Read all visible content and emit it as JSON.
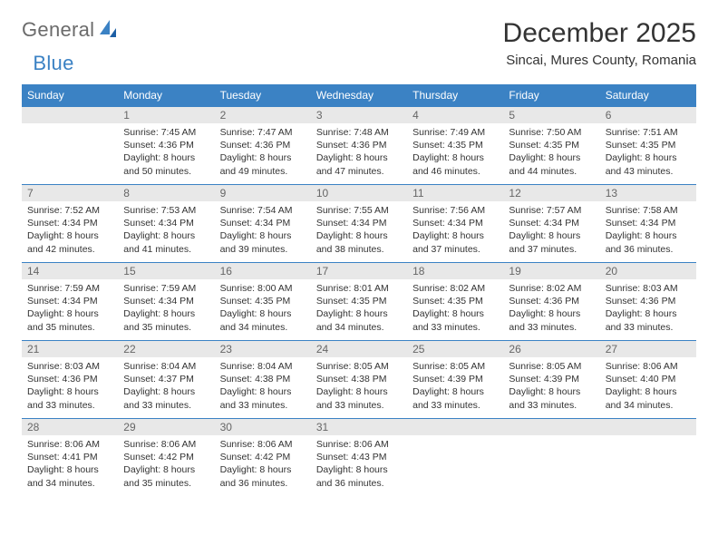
{
  "logo": {
    "word1": "General",
    "word2": "Blue"
  },
  "title": "December 2025",
  "location": "Sincai, Mures County, Romania",
  "colors": {
    "header_bg": "#3b82c4",
    "header_text": "#ffffff",
    "day_num_bg": "#e8e8e8",
    "day_num_text": "#666666",
    "body_text": "#333333",
    "rule": "#3b82c4",
    "page_bg": "#ffffff"
  },
  "weekdays": [
    "Sunday",
    "Monday",
    "Tuesday",
    "Wednesday",
    "Thursday",
    "Friday",
    "Saturday"
  ],
  "weeks": [
    [
      {
        "n": "",
        "sr": "",
        "ss": "",
        "dl": ""
      },
      {
        "n": "1",
        "sr": "Sunrise: 7:45 AM",
        "ss": "Sunset: 4:36 PM",
        "dl": "Daylight: 8 hours and 50 minutes."
      },
      {
        "n": "2",
        "sr": "Sunrise: 7:47 AM",
        "ss": "Sunset: 4:36 PM",
        "dl": "Daylight: 8 hours and 49 minutes."
      },
      {
        "n": "3",
        "sr": "Sunrise: 7:48 AM",
        "ss": "Sunset: 4:36 PM",
        "dl": "Daylight: 8 hours and 47 minutes."
      },
      {
        "n": "4",
        "sr": "Sunrise: 7:49 AM",
        "ss": "Sunset: 4:35 PM",
        "dl": "Daylight: 8 hours and 46 minutes."
      },
      {
        "n": "5",
        "sr": "Sunrise: 7:50 AM",
        "ss": "Sunset: 4:35 PM",
        "dl": "Daylight: 8 hours and 44 minutes."
      },
      {
        "n": "6",
        "sr": "Sunrise: 7:51 AM",
        "ss": "Sunset: 4:35 PM",
        "dl": "Daylight: 8 hours and 43 minutes."
      }
    ],
    [
      {
        "n": "7",
        "sr": "Sunrise: 7:52 AM",
        "ss": "Sunset: 4:34 PM",
        "dl": "Daylight: 8 hours and 42 minutes."
      },
      {
        "n": "8",
        "sr": "Sunrise: 7:53 AM",
        "ss": "Sunset: 4:34 PM",
        "dl": "Daylight: 8 hours and 41 minutes."
      },
      {
        "n": "9",
        "sr": "Sunrise: 7:54 AM",
        "ss": "Sunset: 4:34 PM",
        "dl": "Daylight: 8 hours and 39 minutes."
      },
      {
        "n": "10",
        "sr": "Sunrise: 7:55 AM",
        "ss": "Sunset: 4:34 PM",
        "dl": "Daylight: 8 hours and 38 minutes."
      },
      {
        "n": "11",
        "sr": "Sunrise: 7:56 AM",
        "ss": "Sunset: 4:34 PM",
        "dl": "Daylight: 8 hours and 37 minutes."
      },
      {
        "n": "12",
        "sr": "Sunrise: 7:57 AM",
        "ss": "Sunset: 4:34 PM",
        "dl": "Daylight: 8 hours and 37 minutes."
      },
      {
        "n": "13",
        "sr": "Sunrise: 7:58 AM",
        "ss": "Sunset: 4:34 PM",
        "dl": "Daylight: 8 hours and 36 minutes."
      }
    ],
    [
      {
        "n": "14",
        "sr": "Sunrise: 7:59 AM",
        "ss": "Sunset: 4:34 PM",
        "dl": "Daylight: 8 hours and 35 minutes."
      },
      {
        "n": "15",
        "sr": "Sunrise: 7:59 AM",
        "ss": "Sunset: 4:34 PM",
        "dl": "Daylight: 8 hours and 35 minutes."
      },
      {
        "n": "16",
        "sr": "Sunrise: 8:00 AM",
        "ss": "Sunset: 4:35 PM",
        "dl": "Daylight: 8 hours and 34 minutes."
      },
      {
        "n": "17",
        "sr": "Sunrise: 8:01 AM",
        "ss": "Sunset: 4:35 PM",
        "dl": "Daylight: 8 hours and 34 minutes."
      },
      {
        "n": "18",
        "sr": "Sunrise: 8:02 AM",
        "ss": "Sunset: 4:35 PM",
        "dl": "Daylight: 8 hours and 33 minutes."
      },
      {
        "n": "19",
        "sr": "Sunrise: 8:02 AM",
        "ss": "Sunset: 4:36 PM",
        "dl": "Daylight: 8 hours and 33 minutes."
      },
      {
        "n": "20",
        "sr": "Sunrise: 8:03 AM",
        "ss": "Sunset: 4:36 PM",
        "dl": "Daylight: 8 hours and 33 minutes."
      }
    ],
    [
      {
        "n": "21",
        "sr": "Sunrise: 8:03 AM",
        "ss": "Sunset: 4:36 PM",
        "dl": "Daylight: 8 hours and 33 minutes."
      },
      {
        "n": "22",
        "sr": "Sunrise: 8:04 AM",
        "ss": "Sunset: 4:37 PM",
        "dl": "Daylight: 8 hours and 33 minutes."
      },
      {
        "n": "23",
        "sr": "Sunrise: 8:04 AM",
        "ss": "Sunset: 4:38 PM",
        "dl": "Daylight: 8 hours and 33 minutes."
      },
      {
        "n": "24",
        "sr": "Sunrise: 8:05 AM",
        "ss": "Sunset: 4:38 PM",
        "dl": "Daylight: 8 hours and 33 minutes."
      },
      {
        "n": "25",
        "sr": "Sunrise: 8:05 AM",
        "ss": "Sunset: 4:39 PM",
        "dl": "Daylight: 8 hours and 33 minutes."
      },
      {
        "n": "26",
        "sr": "Sunrise: 8:05 AM",
        "ss": "Sunset: 4:39 PM",
        "dl": "Daylight: 8 hours and 33 minutes."
      },
      {
        "n": "27",
        "sr": "Sunrise: 8:06 AM",
        "ss": "Sunset: 4:40 PM",
        "dl": "Daylight: 8 hours and 34 minutes."
      }
    ],
    [
      {
        "n": "28",
        "sr": "Sunrise: 8:06 AM",
        "ss": "Sunset: 4:41 PM",
        "dl": "Daylight: 8 hours and 34 minutes."
      },
      {
        "n": "29",
        "sr": "Sunrise: 8:06 AM",
        "ss": "Sunset: 4:42 PM",
        "dl": "Daylight: 8 hours and 35 minutes."
      },
      {
        "n": "30",
        "sr": "Sunrise: 8:06 AM",
        "ss": "Sunset: 4:42 PM",
        "dl": "Daylight: 8 hours and 36 minutes."
      },
      {
        "n": "31",
        "sr": "Sunrise: 8:06 AM",
        "ss": "Sunset: 4:43 PM",
        "dl": "Daylight: 8 hours and 36 minutes."
      },
      {
        "n": "",
        "sr": "",
        "ss": "",
        "dl": ""
      },
      {
        "n": "",
        "sr": "",
        "ss": "",
        "dl": ""
      },
      {
        "n": "",
        "sr": "",
        "ss": "",
        "dl": ""
      }
    ]
  ]
}
